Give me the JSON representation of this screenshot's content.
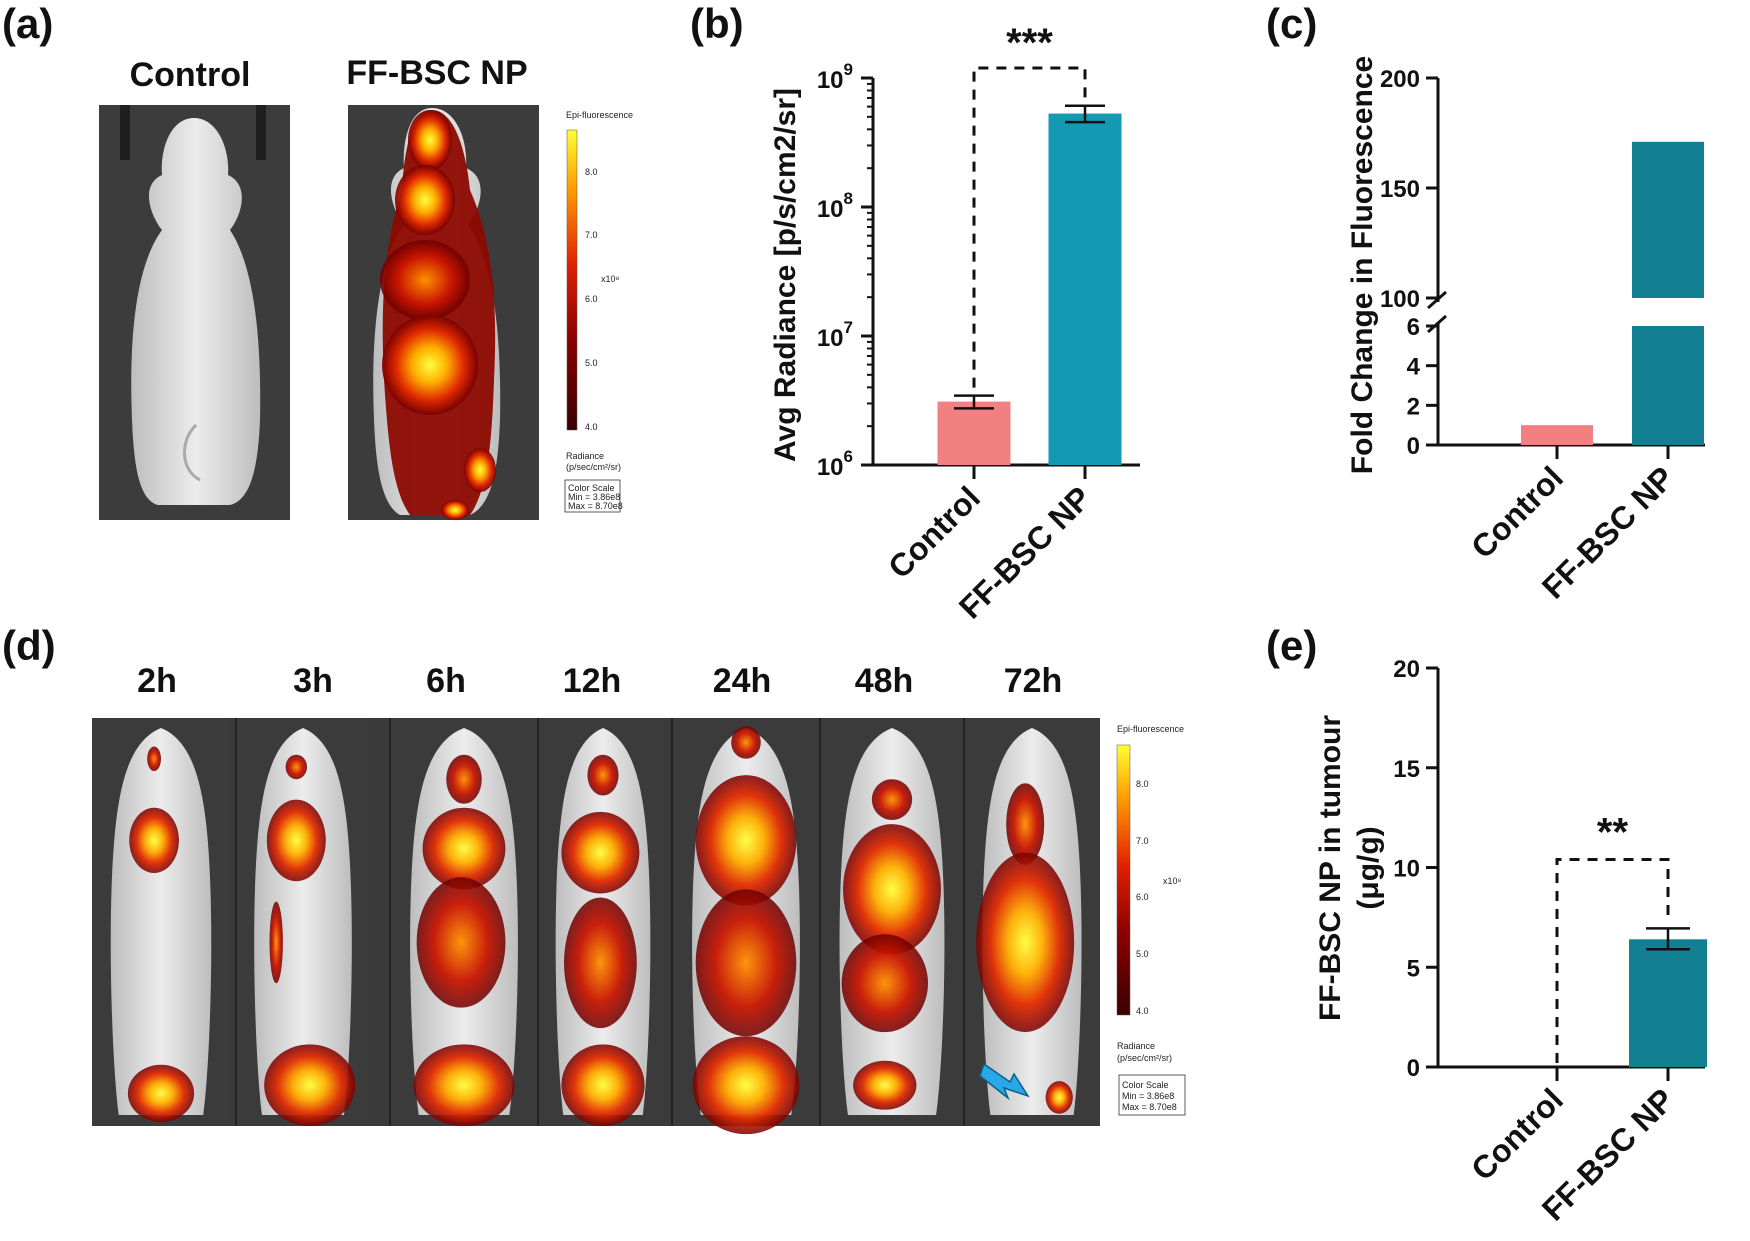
{
  "panels": {
    "a": {
      "label": "(a)",
      "groups": [
        "Control",
        "FF-BSC NP"
      ],
      "colorbar": {
        "title": "Epi-fluorescence",
        "ticks": [
          "8.0",
          "7.0",
          "6.0",
          "5.0",
          "4.0"
        ],
        "exponent": "x10⁸",
        "unit_line1": "Radiance",
        "unit_line2": "(p/sec/cm²/sr)",
        "scale_title": "Color Scale",
        "scale_min": "Min = 3.86e8",
        "scale_max": "Max = 8.70e8"
      }
    },
    "d": {
      "label": "(d)",
      "timepoints": [
        "2h",
        "3h",
        "6h",
        "12h",
        "24h",
        "48h",
        "72h"
      ],
      "colorbar": {
        "title": "Epi-fluorescence",
        "ticks": [
          "8.0",
          "7.0",
          "6.0",
          "5.0",
          "4.0"
        ],
        "exponent": "x10⁸",
        "unit_line1": "Radiance",
        "unit_line2": "(p/sec/cm²/sr)",
        "scale_title": "Color Scale",
        "scale_min": "Min = 3.86e8",
        "scale_max": "Max = 8.70e8"
      }
    },
    "b": {
      "label": "(b)",
      "ylabel": "Avg Radiance [p/s/cm2/sr]",
      "significance": "***",
      "yticks": [
        "6",
        "7",
        "8",
        "9"
      ],
      "ytick_base": "10"
    },
    "c": {
      "label": "(c)",
      "ylabel": "Fold Change in Fluorescence",
      "yticks_low": [
        "0",
        "2",
        "4",
        "6"
      ],
      "yticks_high": [
        "100",
        "150",
        "200"
      ]
    },
    "e": {
      "label": "(e)",
      "ylabel_line1": "FF-BSC NP in tumour",
      "ylabel_line2": "(μg/g)",
      "significance": "**",
      "yticks": [
        "0",
        "5",
        "10",
        "15",
        "20"
      ]
    }
  },
  "colors": {
    "control": "#f28080",
    "ff_bsc_b": "#1499b3",
    "ff_bsc_c": "#137f93",
    "ff_bsc_e": "#137f93",
    "arrow": "#29a7e6"
  },
  "chart_data": [
    {
      "panel": "b",
      "type": "bar",
      "categories": [
        "Control",
        "FF-BSC NP"
      ],
      "values": [
        3100000,
        530000000
      ],
      "errors": [
        [
          2750000,
          3450000
        ],
        [
          455000000,
          610000000
        ]
      ],
      "ylabel": "Avg Radiance [p/s/cm2/sr]",
      "yscale": "log",
      "ylim": [
        1000000,
        1000000000
      ],
      "significance": "***"
    },
    {
      "panel": "c",
      "type": "bar",
      "categories": [
        "Control",
        "FF-BSC NP"
      ],
      "values": [
        1,
        171
      ],
      "ylabel": "Fold Change in Fluorescence",
      "axis_break": [
        6,
        100
      ],
      "ylim": [
        0,
        200
      ]
    },
    {
      "panel": "e",
      "type": "bar",
      "categories": [
        "Control",
        "FF-BSC NP"
      ],
      "values": [
        0,
        6.4
      ],
      "errors": [
        [
          0,
          0
        ],
        [
          5.9,
          6.95
        ]
      ],
      "ylabel": "FF-BSC NP in tumour (μg/g)",
      "ylim": [
        0,
        20
      ],
      "significance": "**"
    }
  ]
}
